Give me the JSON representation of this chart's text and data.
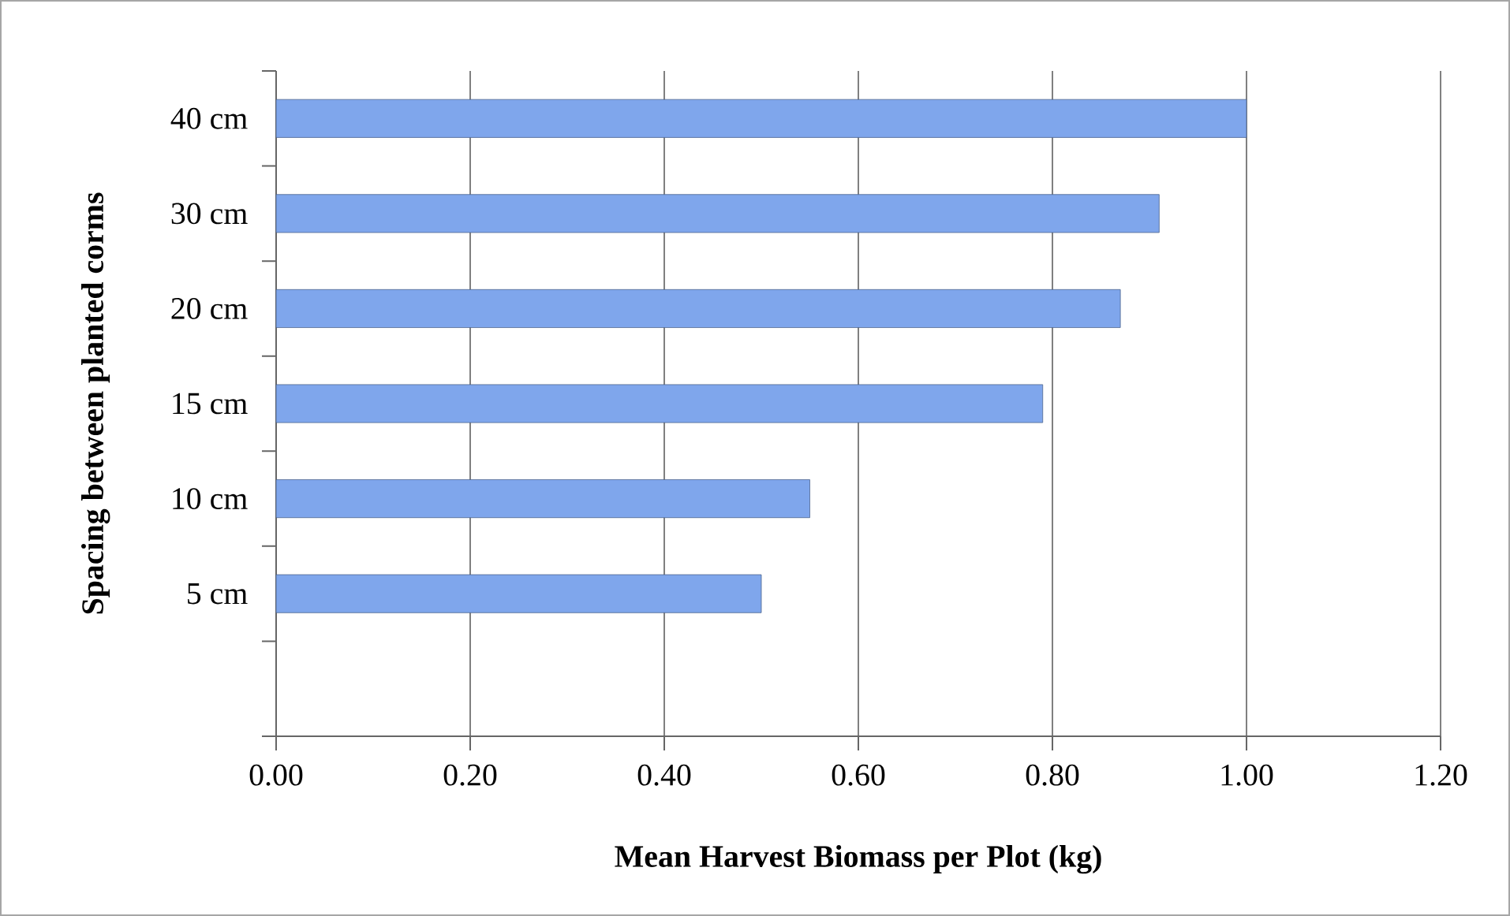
{
  "chart_data": {
    "type": "bar",
    "orientation": "horizontal",
    "xlabel": "Mean Harvest Biomass per Plot (kg)",
    "ylabel": "Spacing between planted corms",
    "categories": [
      "40 cm",
      "30 cm",
      "20 cm",
      "15 cm",
      "10 cm",
      "5 cm",
      null
    ],
    "values": [
      1.0,
      0.91,
      0.87,
      0.79,
      0.55,
      0.5,
      null
    ],
    "color": "#7fa6ec",
    "xlim": [
      0,
      1.2
    ],
    "xticks": [
      {
        "value": 0,
        "label": "0.00"
      },
      {
        "value": 0.2,
        "label": "0.20"
      },
      {
        "value": 0.4,
        "label": "0.40"
      },
      {
        "value": 0.6,
        "label": "0.60"
      },
      {
        "value": 0.8,
        "label": "0.80"
      },
      {
        "value": 1.0,
        "label": "1.00"
      },
      {
        "value": 1.2,
        "label": "1.20"
      }
    ],
    "grid": "x"
  }
}
